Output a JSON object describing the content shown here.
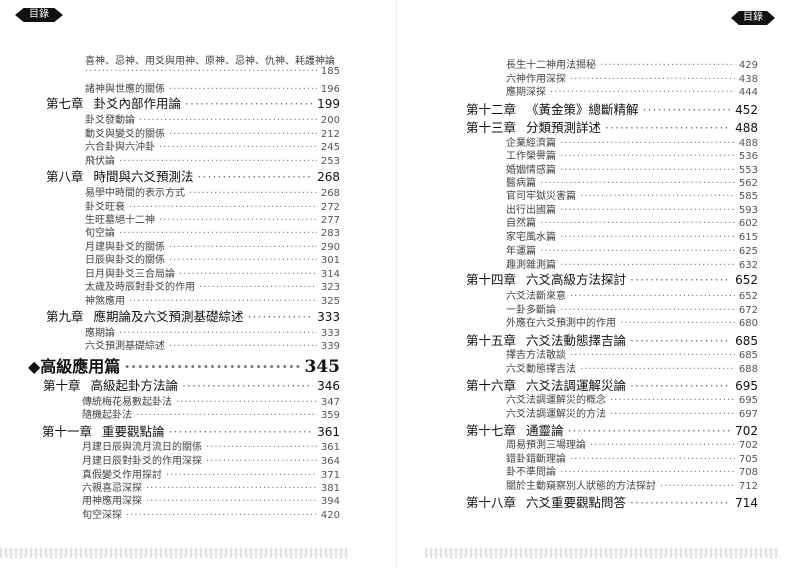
{
  "header": {
    "left_badge": "目錄",
    "right_badge": "目錄"
  },
  "left_page": [
    {
      "type": "sub",
      "title": "喜神、忌神、用爻與用神、原神、忌神、仇神、耗護神論",
      "page": ""
    },
    {
      "type": "sub",
      "title": "",
      "page": "185"
    },
    {
      "type": "sub",
      "title": "諸神與世應的關係",
      "page": "196"
    },
    {
      "type": "chap",
      "num": "第七章",
      "title": "卦爻內部作用論",
      "page": "199"
    },
    {
      "type": "sub",
      "title": "卦爻發動論",
      "page": "200"
    },
    {
      "type": "sub",
      "title": "動爻與變爻的關係",
      "page": "212"
    },
    {
      "type": "sub",
      "title": "六合卦與六沖卦",
      "page": "245"
    },
    {
      "type": "sub",
      "title": "飛伏論",
      "page": "253"
    },
    {
      "type": "chap",
      "num": "第八章",
      "title": "時間與六爻預測法",
      "page": "268"
    },
    {
      "type": "sub",
      "title": "易學中時間的表示方式",
      "page": "268"
    },
    {
      "type": "sub",
      "title": "卦爻旺衰",
      "page": "272"
    },
    {
      "type": "sub",
      "title": "生旺墓絕十二神",
      "page": "277"
    },
    {
      "type": "sub",
      "title": "旬空論",
      "page": "283"
    },
    {
      "type": "sub",
      "title": "月建與卦爻的關係",
      "page": "290"
    },
    {
      "type": "sub",
      "title": "日辰與卦爻的關係",
      "page": "301"
    },
    {
      "type": "sub",
      "title": "日月與卦爻三合局論",
      "page": "314"
    },
    {
      "type": "sub",
      "title": "太歲及時辰對卦爻的作用",
      "page": "323"
    },
    {
      "type": "sub",
      "title": "神煞應用",
      "page": "325"
    },
    {
      "type": "chap",
      "num": "第九章",
      "title": "應期論及六爻預測基礎綜述",
      "page": "333"
    },
    {
      "type": "sub",
      "title": "應期論",
      "page": "333"
    },
    {
      "type": "sub",
      "title": "六爻預測基礎綜述",
      "page": "339"
    },
    {
      "type": "part",
      "title": "◆高級應用篇",
      "page": "345"
    },
    {
      "type": "chap",
      "num": "第十章",
      "title": "高級起卦方法論",
      "page": "346"
    },
    {
      "type": "sub",
      "title": "傳統梅花易數起卦法",
      "page": "347"
    },
    {
      "type": "sub",
      "title": "隨機起卦法",
      "page": "359"
    },
    {
      "type": "chap",
      "num": "第十一章",
      "title": "重要觀點論",
      "page": "361"
    },
    {
      "type": "sub",
      "title": "月建日辰與流月流日的關係",
      "page": "361"
    },
    {
      "type": "sub",
      "title": "月建日辰對卦爻的作用深探",
      "page": "364"
    },
    {
      "type": "sub",
      "title": "真假變爻作用探討",
      "page": "371"
    },
    {
      "type": "sub",
      "title": "六親喜忌深探",
      "page": "381"
    },
    {
      "type": "sub",
      "title": "用神應用深探",
      "page": "394"
    },
    {
      "type": "sub",
      "title": "旬空深探",
      "page": "420"
    }
  ],
  "right_page": [
    {
      "type": "sub",
      "title": "長生十二神用法揭秘",
      "page": "429"
    },
    {
      "type": "sub",
      "title": "六神作用深探",
      "page": "438"
    },
    {
      "type": "sub",
      "title": "應期深探",
      "page": "444"
    },
    {
      "type": "chap",
      "num": "第十二章",
      "title": "《黃金策》總斷精解",
      "page": "452"
    },
    {
      "type": "chap",
      "num": "第十三章",
      "title": "分類預測詳述",
      "page": "488"
    },
    {
      "type": "sub",
      "title": "企業經濟篇",
      "page": "488"
    },
    {
      "type": "sub",
      "title": "工作榮譽篇",
      "page": "536"
    },
    {
      "type": "sub",
      "title": "婚姻情感篇",
      "page": "553"
    },
    {
      "type": "sub",
      "title": "醫病篇",
      "page": "562"
    },
    {
      "type": "sub",
      "title": "官司牢獄災害篇",
      "page": "585"
    },
    {
      "type": "sub",
      "title": "出行出國篇",
      "page": "593"
    },
    {
      "type": "sub",
      "title": "自然篇",
      "page": "602"
    },
    {
      "type": "sub",
      "title": "家宅風水篇",
      "page": "615"
    },
    {
      "type": "sub",
      "title": "年運篇",
      "page": "625"
    },
    {
      "type": "sub",
      "title": "趣測雜測篇",
      "page": "632"
    },
    {
      "type": "chap",
      "num": "第十四章",
      "title": "六爻高級方法探討",
      "page": "652"
    },
    {
      "type": "sub",
      "title": "六爻法斷來意",
      "page": "652"
    },
    {
      "type": "sub",
      "title": "一卦多斷論",
      "page": "672"
    },
    {
      "type": "sub",
      "title": "外應在六爻預測中的作用",
      "page": "680"
    },
    {
      "type": "chap",
      "num": "第十五章",
      "title": "六爻法動態擇吉論",
      "page": "685"
    },
    {
      "type": "sub",
      "title": "擇吉方法散談",
      "page": "685"
    },
    {
      "type": "sub",
      "title": "六爻動態擇吉法",
      "page": "688"
    },
    {
      "type": "chap",
      "num": "第十六章",
      "title": "六爻法調運解災論",
      "page": "695"
    },
    {
      "type": "sub",
      "title": "六爻法調運解災的概念",
      "page": "695"
    },
    {
      "type": "sub",
      "title": "六爻法調運解災的方法",
      "page": "697"
    },
    {
      "type": "chap",
      "num": "第十七章",
      "title": "通靈論",
      "page": "702"
    },
    {
      "type": "sub",
      "title": "周易預測三場理論",
      "page": "702"
    },
    {
      "type": "sub",
      "title": "錯卦錯斷理論",
      "page": "705"
    },
    {
      "type": "sub",
      "title": "卦不準問論",
      "page": "708"
    },
    {
      "type": "sub",
      "title": "關於主動窺察別人狀態的方法探討",
      "page": "712"
    },
    {
      "type": "chap",
      "num": "第十八章",
      "title": "六爻重要觀點問答",
      "page": "714"
    }
  ]
}
